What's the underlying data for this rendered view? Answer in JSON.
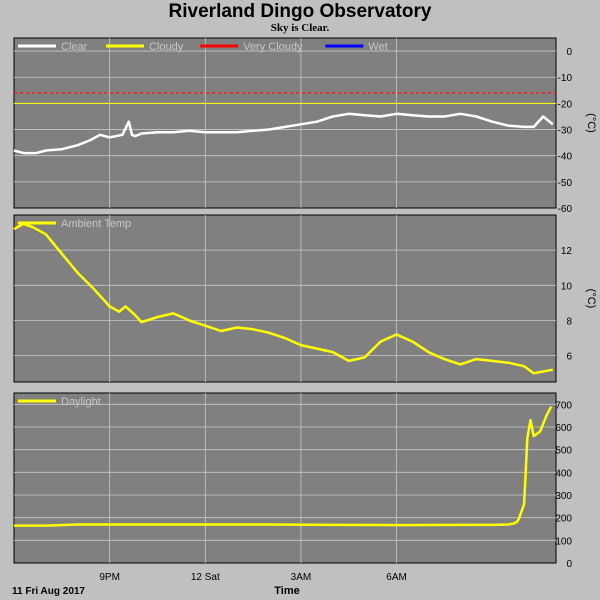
{
  "title": "Riverland Dingo Observatory",
  "subtitle": "Sky is Clear.",
  "xaxis": {
    "label": "Time",
    "start_label": "11 Fri Aug 2017",
    "ticks": [
      "9PM",
      "12 Sat",
      "3AM",
      "6AM"
    ]
  },
  "colors": {
    "background": "#c0c0c0",
    "plot_bg": "#808080",
    "grid": "#c8c8c8",
    "clear": "#ffffff",
    "cloudy": "#ffff00",
    "very_cloudy": "#ff0000",
    "wet": "#0000ff"
  },
  "chart_data": [
    {
      "type": "line",
      "x_unit": "hours after 18:00, 11 Fri Aug 2017",
      "ylabel": "(°C)",
      "ylim": [
        -60,
        5
      ],
      "yticks": [
        0,
        -10,
        -20,
        -30,
        -40,
        -50,
        -60
      ],
      "legend": [
        "Clear",
        "Cloudy",
        "Very Cloudy",
        "Wet"
      ],
      "thresholds": [
        {
          "name": "Cloudy",
          "y": -20,
          "color": "#ffff00",
          "style": "solid"
        },
        {
          "name": "Very Cloudy",
          "y": -16,
          "color": "#ff0000",
          "style": "dashed"
        }
      ],
      "series": [
        {
          "name": "Clear",
          "color": "#ffffff",
          "x": [
            0,
            0.3,
            0.7,
            1.0,
            1.5,
            2.0,
            2.4,
            2.7,
            3.0,
            3.4,
            3.6,
            3.7,
            3.8,
            4.0,
            4.5,
            5.0,
            5.5,
            6.0,
            6.5,
            7.0,
            7.5,
            8.0,
            8.5,
            9.0,
            9.5,
            10.0,
            10.5,
            11.0,
            11.5,
            12.0,
            12.5,
            13.0,
            13.5,
            14.0,
            14.5,
            15.0,
            15.5,
            16.0,
            16.3,
            16.6,
            16.9
          ],
          "y": [
            -38,
            -39,
            -39,
            -38,
            -37.5,
            -36,
            -34,
            -32,
            -33,
            -32,
            -27,
            -32,
            -32.5,
            -31.5,
            -31,
            -31,
            -30.5,
            -31,
            -31,
            -31,
            -30.5,
            -30,
            -29,
            -28,
            -27,
            -25,
            -24,
            -24.5,
            -25,
            -24,
            -24.5,
            -25,
            -25,
            -24,
            -25,
            -27,
            -28.5,
            -29,
            -29,
            -25,
            -28
          ]
        }
      ]
    },
    {
      "type": "line",
      "x_unit": "hours after 18:00, 11 Fri Aug 2017",
      "ylabel": "(°C)",
      "ylim": [
        4.5,
        14
      ],
      "yticks": [
        6,
        8,
        10,
        12
      ],
      "series": [
        {
          "name": "Ambient Temp",
          "color": "#ffff00",
          "x": [
            0,
            0.3,
            0.6,
            1.0,
            1.5,
            2.0,
            2.5,
            3.0,
            3.3,
            3.5,
            3.8,
            4.0,
            4.5,
            5.0,
            5.5,
            6.0,
            6.5,
            7.0,
            7.5,
            8.0,
            8.5,
            9.0,
            9.5,
            10.0,
            10.5,
            11.0,
            11.5,
            12.0,
            12.5,
            13.0,
            13.5,
            14.0,
            14.5,
            15.0,
            15.5,
            16.0,
            16.3,
            16.6,
            16.9
          ],
          "y": [
            13.2,
            13.5,
            13.3,
            12.9,
            11.8,
            10.7,
            9.8,
            8.8,
            8.5,
            8.8,
            8.3,
            7.9,
            8.2,
            8.4,
            8.0,
            7.7,
            7.4,
            7.6,
            7.5,
            7.3,
            7.0,
            6.6,
            6.4,
            6.2,
            5.7,
            5.9,
            6.8,
            7.2,
            6.8,
            6.2,
            5.8,
            5.5,
            5.8,
            5.7,
            5.6,
            5.4,
            5.0,
            5.1,
            5.2
          ]
        }
      ]
    },
    {
      "type": "line",
      "x_unit": "hours after 18:00, 11 Fri Aug 2017",
      "ylabel": "",
      "ylim": [
        0,
        750
      ],
      "yticks": [
        0,
        100,
        200,
        300,
        400,
        500,
        600,
        700
      ],
      "series": [
        {
          "name": "Daylight",
          "color": "#ffff00",
          "x": [
            0,
            1,
            2,
            4,
            6,
            8,
            10,
            12,
            14,
            15,
            15.5,
            15.7,
            15.8,
            15.85,
            16.0,
            16.05,
            16.1,
            16.2,
            16.3,
            16.5,
            16.7,
            16.85
          ],
          "y": [
            165,
            165,
            170,
            170,
            170,
            170,
            168,
            167,
            168,
            168,
            170,
            175,
            185,
            200,
            260,
            400,
            550,
            630,
            560,
            580,
            650,
            690
          ]
        }
      ]
    }
  ]
}
